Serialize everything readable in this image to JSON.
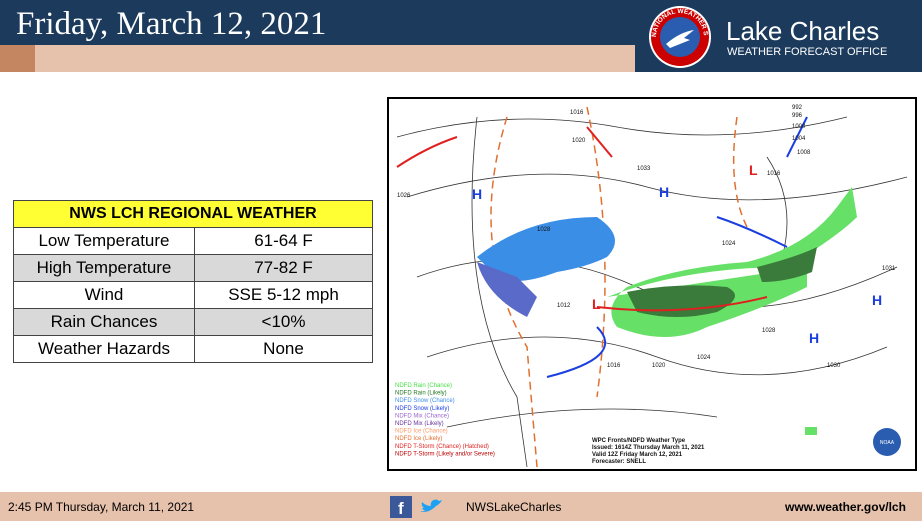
{
  "header": {
    "title": "Friday, March 12, 2021",
    "office": "Lake Charles",
    "office_sub": "WEATHER FORECAST OFFICE",
    "logo_text": "NATIONAL WEATHER SERVICE"
  },
  "table": {
    "title": "NWS LCH REGIONAL WEATHER",
    "rows": [
      [
        "Low Temperature",
        "61-64 F"
      ],
      [
        "High Temperature",
        "77-82 F"
      ],
      [
        "Wind",
        "SSE 5-12 mph"
      ],
      [
        "Rain Chances",
        "<10%"
      ],
      [
        "Weather Hazards",
        "None"
      ]
    ]
  },
  "map": {
    "legend": [
      "NDFD Rain (Chance)",
      "NDFD Rain (Likely)",
      "NDFD Snow (Chance)",
      "NDFD Snow (Likely)",
      "NDFD Mix (Chance)",
      "NDFD Mix (Likely)",
      "NDFD Ice (Chance)",
      "NDFD Ice (Likely)",
      "NDFD T-Storm (Chance) (Hatched)",
      "NDFD T-Storm (Likely and/or Severe)"
    ],
    "caption": [
      "WPC Fronts/NDFD Weather Type",
      "Issued: 1614Z Thursday March 11, 2021",
      "Valid 12Z Friday March 12, 2021",
      "Forecaster: SNELL"
    ],
    "pressure_labels": [
      "1016",
      "1020",
      "1033",
      "1028",
      "1024",
      "1012",
      "1016",
      "1020",
      "1024",
      "1028",
      "1031",
      "1030",
      "1016",
      "1008",
      "1004",
      "1000",
      "996",
      "992",
      "1026"
    ],
    "high_label": "H",
    "low_label": "L",
    "noaa": "NOAA"
  },
  "footer": {
    "time": "2:45 PM Thursday, March 11, 2021",
    "social": "NWSLakeCharles",
    "url": "www.weather.gov/lch"
  }
}
